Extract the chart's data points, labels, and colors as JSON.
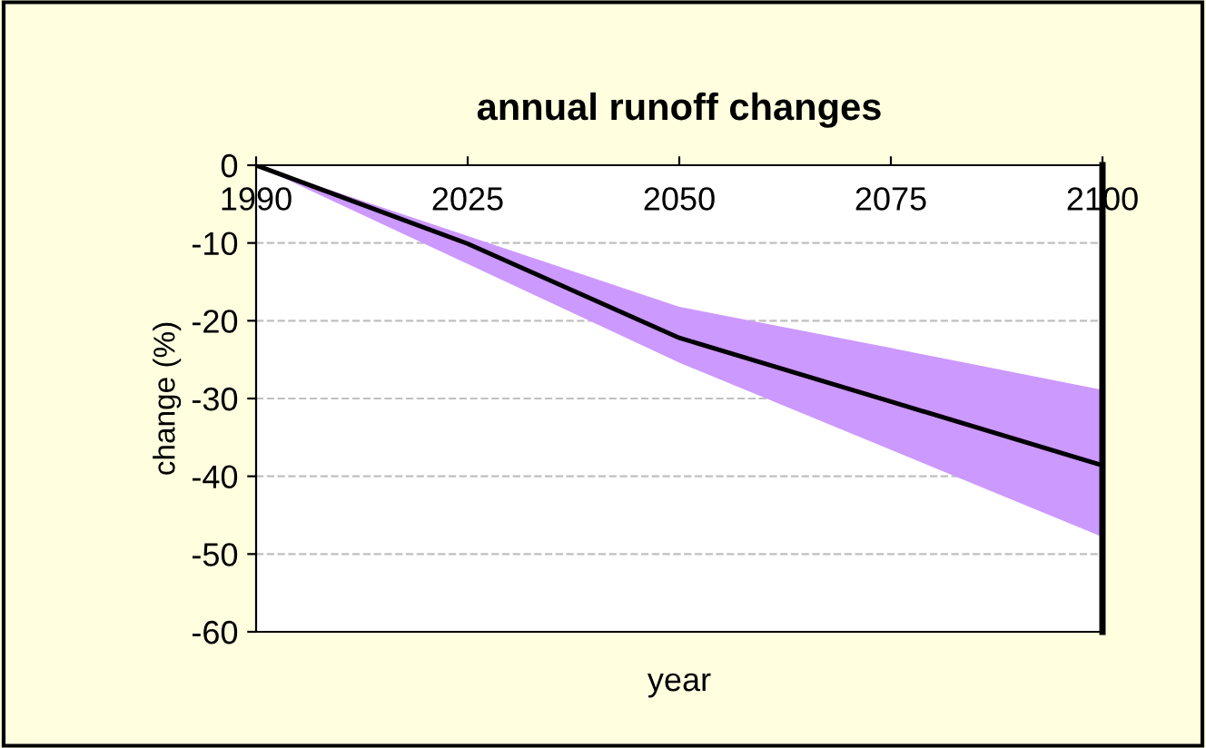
{
  "chart_data": {
    "type": "line",
    "title": "annual runoff changes",
    "xlabel": "year",
    "ylabel": "change (%)",
    "categories": [
      "1990",
      "2025",
      "2050",
      "2075",
      "2100"
    ],
    "series": [
      {
        "color": "#000000",
        "values": [
          0,
          -10.1,
          -22.2,
          -30.4,
          -38.6
        ],
        "lower": [
          0,
          -12.7,
          -25.4,
          -36.6,
          -47.8
        ],
        "upper": [
          0,
          -9.1,
          -18.2,
          -23.5,
          -28.9
        ]
      }
    ],
    "colors": [
      "#cc99ff"
    ],
    "ylim": [
      -60,
      0
    ],
    "yticks": [
      0,
      -10,
      -20,
      -30,
      -40,
      -50,
      -60
    ],
    "grid": "y",
    "marker": "none",
    "line_style": "solid"
  }
}
